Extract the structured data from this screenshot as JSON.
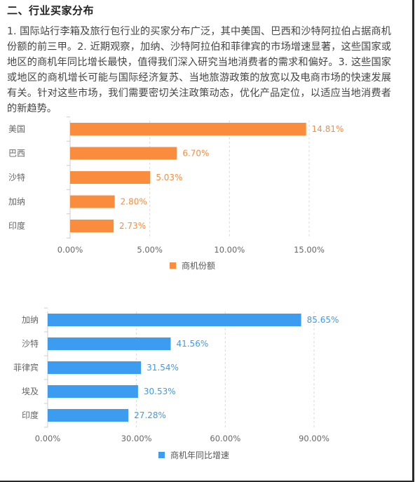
{
  "section_title": "二、行业买家分布",
  "summary": "1. 国际站行李箱及旅行包行业的买家分布广泛，其中美国、巴西和沙特阿拉伯占据商机份额的前三甲。2. 近期观察，加纳、沙特阿拉伯和菲律宾的市场增速显著，这些国家或地区的商机年同比增长最快，值得我们深入研究当地消费者的需求和偏好。3. 这些国家或地区的商机增长可能与国际经济复苏、当地旅游政策的放宽以及电商市场的快速发展有关。针对这些市场，我们需要密切关注政策动态，优化产品定位，以适应当地消费者的新趋势。",
  "colors": {
    "orange": "#f98d3d",
    "blue": "#3b9cf0",
    "grid": "#d9d9d9",
    "axis": "#cccccc"
  },
  "chart_data": [
    {
      "type": "bar",
      "orientation": "horizontal",
      "categories": [
        "美国",
        "巴西",
        "沙特",
        "加纳",
        "印度"
      ],
      "series": [
        {
          "name": "商机份额",
          "values": [
            14.81,
            6.7,
            5.03,
            2.8,
            2.73
          ],
          "color": "#f98d3d"
        }
      ],
      "data_labels": [
        "14.81%",
        "6.70%",
        "5.03%",
        "2.80%",
        "2.73%"
      ],
      "xticks": [
        0,
        5,
        10,
        15
      ],
      "xtick_labels": [
        "0.00%",
        "5.00%",
        "10.00%",
        "15.00%"
      ],
      "xlim": [
        0,
        15
      ],
      "grid": true,
      "legend_position": "bottom"
    },
    {
      "type": "bar",
      "orientation": "horizontal",
      "categories": [
        "加纳",
        "沙特",
        "菲律宾",
        "埃及",
        "印度"
      ],
      "series": [
        {
          "name": "商机年同比增速",
          "values": [
            85.65,
            41.56,
            31.54,
            30.53,
            27.28
          ],
          "color": "#3b9cf0"
        }
      ],
      "data_labels": [
        "85.65%",
        "41.56%",
        "31.54%",
        "30.53%",
        "27.28%"
      ],
      "xticks": [
        0,
        30,
        60,
        90
      ],
      "xtick_labels": [
        "0.00%",
        "30.00%",
        "60.00%",
        "90.00%"
      ],
      "xlim": [
        0,
        90
      ],
      "grid": true,
      "legend_position": "bottom"
    }
  ]
}
